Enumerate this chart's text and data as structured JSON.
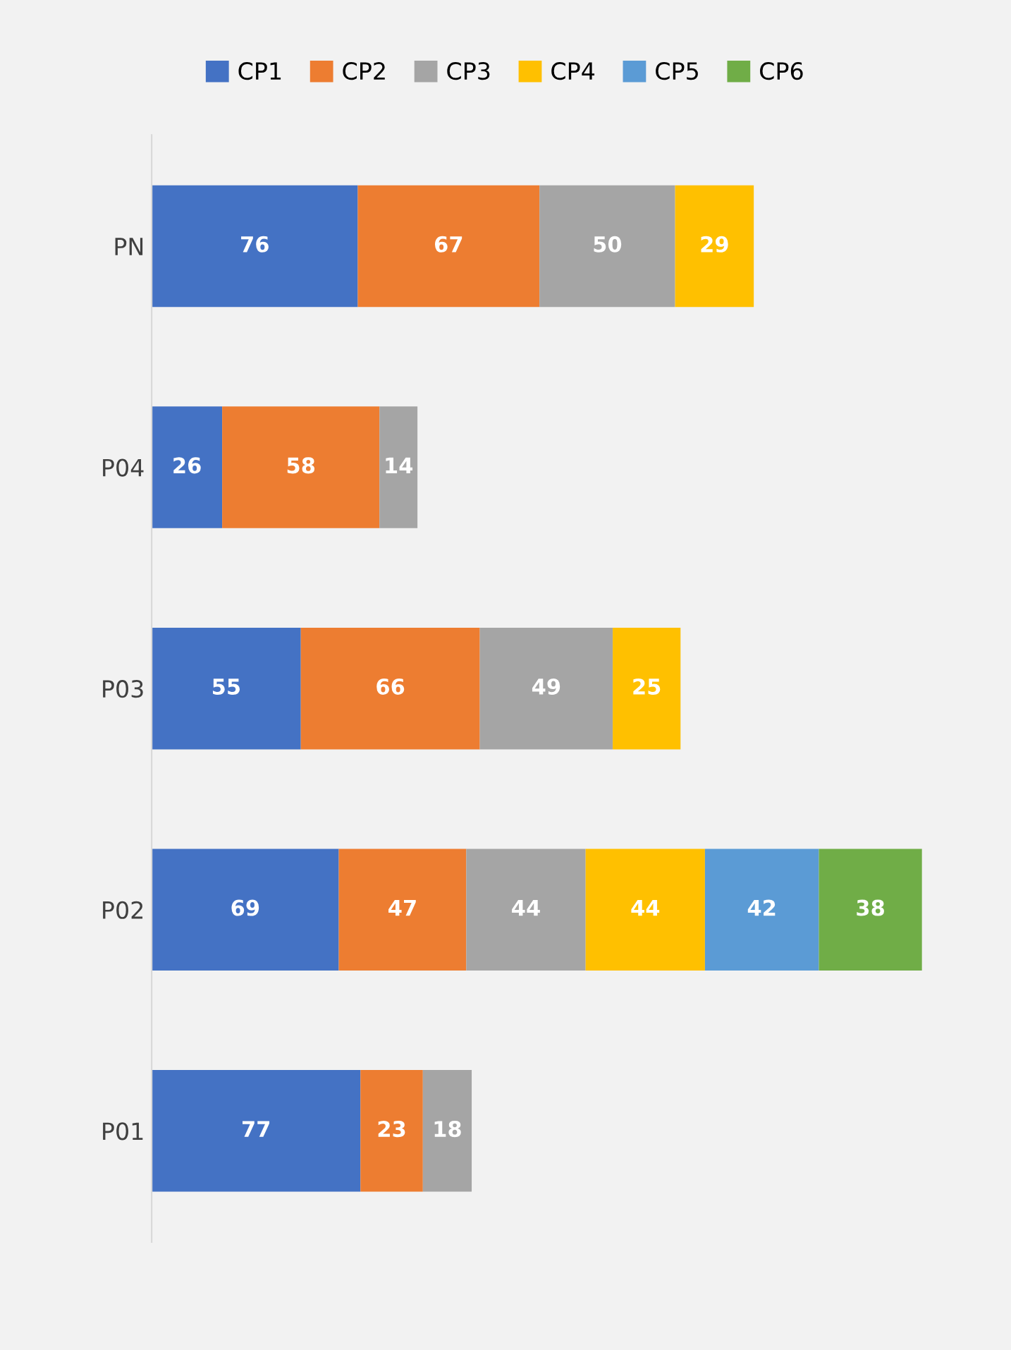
{
  "chart_data": {
    "type": "bar",
    "orientation": "horizontal",
    "stacked": true,
    "data_labels": true,
    "legend": "top",
    "grid": false,
    "tick_labels": "y",
    "categories": [
      "PN",
      "P04",
      "P03",
      "P02",
      "P01"
    ],
    "series": [
      {
        "name": "CP1",
        "color": "#4472c4",
        "values": [
          76,
          26,
          55,
          69,
          77
        ]
      },
      {
        "name": "CP2",
        "color": "#ed7d31",
        "values": [
          67,
          58,
          66,
          47,
          23
        ]
      },
      {
        "name": "CP3",
        "color": "#a5a5a5",
        "values": [
          50,
          14,
          49,
          44,
          18
        ]
      },
      {
        "name": "CP4",
        "color": "#ffc000",
        "values": [
          29,
          null,
          25,
          44,
          null
        ]
      },
      {
        "name": "CP5",
        "color": "#5b9bd5",
        "values": [
          null,
          null,
          null,
          42,
          null
        ]
      },
      {
        "name": "CP6",
        "color": "#70ad47",
        "values": [
          null,
          null,
          null,
          38,
          null
        ]
      }
    ]
  }
}
